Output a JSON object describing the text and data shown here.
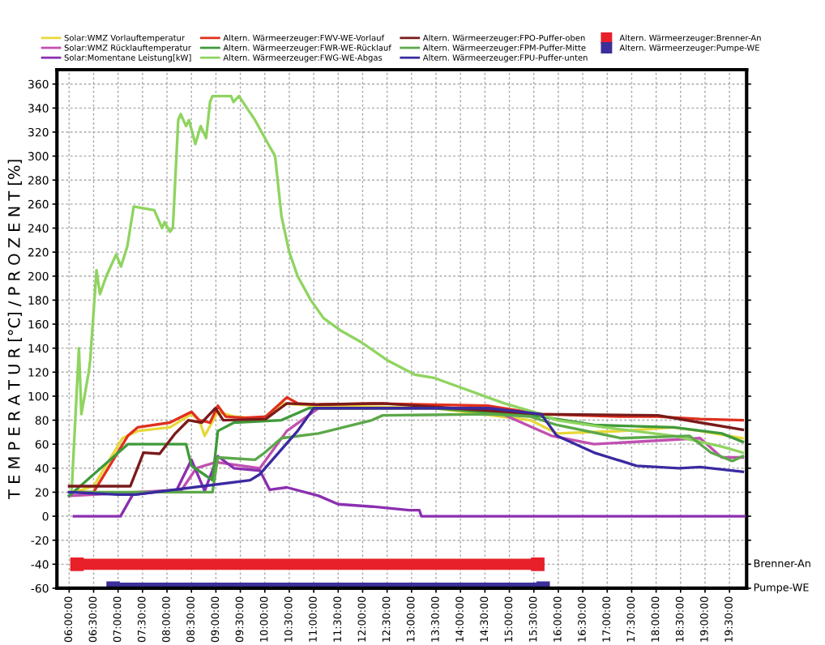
{
  "chart_data": {
    "type": "line",
    "ylabel": "T E M P E R A T U R [°C] / P R O Z E N T [%]",
    "xlim": [
      5.75,
      19.85
    ],
    "ylim": [
      -60,
      372
    ],
    "xticks": [
      {
        "value": 6,
        "label": "06:00:00"
      },
      {
        "value": 6.5,
        "label": "06:30:00"
      },
      {
        "value": 7,
        "label": "07:00:00"
      },
      {
        "value": 7.5,
        "label": "07:30:00"
      },
      {
        "value": 8,
        "label": "08:00:00"
      },
      {
        "value": 8.5,
        "label": "08:30:00"
      },
      {
        "value": 9,
        "label": "09:00:00"
      },
      {
        "value": 9.5,
        "label": "09:30:00"
      },
      {
        "value": 10,
        "label": "10:00:00"
      },
      {
        "value": 10.5,
        "label": "10:30:00"
      },
      {
        "value": 11,
        "label": "11:00:00"
      },
      {
        "value": 11.5,
        "label": "11:30:00"
      },
      {
        "value": 12,
        "label": "12:00:00"
      },
      {
        "value": 12.5,
        "label": "12:30:00"
      },
      {
        "value": 13,
        "label": "13:00:00"
      },
      {
        "value": 13.5,
        "label": "13:30:00"
      },
      {
        "value": 14,
        "label": "14:00:00"
      },
      {
        "value": 14.5,
        "label": "14:30:00"
      },
      {
        "value": 15,
        "label": "15:00:00"
      },
      {
        "value": 15.5,
        "label": "15:30:00"
      },
      {
        "value": 16,
        "label": "16:00:00"
      },
      {
        "value": 16.5,
        "label": "16:30:00"
      },
      {
        "value": 17,
        "label": "17:00:00"
      },
      {
        "value": 17.5,
        "label": "17:30:00"
      },
      {
        "value": 18,
        "label": "18:00:00"
      },
      {
        "value": 18.5,
        "label": "18:30:00"
      },
      {
        "value": 19,
        "label": "19:00:00"
      },
      {
        "value": 19.5,
        "label": "19:30:00"
      }
    ],
    "yticks": [
      -60,
      -40,
      -20,
      0,
      20,
      40,
      60,
      80,
      100,
      120,
      140,
      160,
      180,
      200,
      220,
      240,
      260,
      280,
      300,
      320,
      340,
      360
    ],
    "annotations": [
      "Brenner-An",
      "Pumpe-WE"
    ],
    "grid": true,
    "legend": "top",
    "line_style": "solid",
    "marker": "none",
    "series": [
      {
        "name": "Solar:WMZ Vorlauftemperatur",
        "color": "#e8d83a",
        "x": [
          6.1,
          6.5,
          7.09,
          7.4,
          8.06,
          8.5,
          8.66,
          8.77,
          9.04,
          9.37,
          10.0,
          10.34,
          11.1,
          13.48,
          15.43,
          15.97,
          17.28,
          18.36,
          18.9,
          19.77
        ],
        "values": [
          20,
          25,
          65,
          71,
          74,
          85,
          80,
          67,
          87,
          83,
          81,
          94,
          92,
          90,
          80,
          69,
          71,
          74,
          71,
          65
        ]
      },
      {
        "name": "Solar:WMZ Rücklauftemperatur",
        "color": "#c050b0",
        "x": [
          6.0,
          8.3,
          8.6,
          9.0,
          9.9,
          10.45,
          11.1,
          14.58,
          15.86,
          16.73,
          18.9,
          19.34,
          19.77
        ],
        "values": [
          17,
          22,
          40,
          45,
          40,
          71,
          90,
          90,
          67,
          60,
          65,
          49,
          49
        ]
      },
      {
        "name": "Solar:Momentane Leistung[kW]",
        "color": "#8a2fb0",
        "x": [
          6.1,
          7.05,
          7.3,
          8.2,
          8.5,
          8.77,
          9.04,
          9.37,
          9.9,
          10.1,
          10.45,
          11.1,
          11.5,
          12.2,
          12.95,
          13.16,
          13.2,
          19.8
        ],
        "values": [
          0,
          0,
          18,
          22,
          47,
          21,
          50,
          40,
          38,
          22,
          24,
          17,
          10,
          8,
          5,
          5,
          0,
          0
        ]
      },
      {
        "name": "Altern. Wärmeerzeuger:FWV-WE-Vorlauf",
        "color": "#e0301e",
        "x": [
          6.1,
          6.5,
          7.2,
          7.4,
          8.06,
          8.5,
          8.66,
          8.88,
          9.04,
          9.2,
          9.58,
          10.02,
          10.45,
          10.67,
          11.1,
          12.19,
          14.58,
          15.65,
          17.28,
          18.04,
          18.9,
          19.77
        ],
        "values": [
          20,
          20,
          67,
          74,
          78,
          87,
          80,
          78,
          92,
          83,
          82,
          83,
          99,
          94,
          93,
          94,
          92,
          85,
          83,
          83,
          81,
          80
        ]
      },
      {
        "name": "Altern. Wärmeerzeuger:FWR-WE-Rücklauf",
        "color": "#3f9a3a",
        "x": [
          6.0,
          7.2,
          8.39,
          8.5,
          8.93,
          9.04,
          9.37,
          10.34,
          10.9,
          13.48,
          15.65,
          16.73,
          18.36,
          19.34,
          19.77
        ],
        "values": [
          17,
          60,
          60,
          42,
          30,
          71,
          78,
          80,
          90,
          90,
          83,
          76,
          74,
          69,
          62
        ]
      },
      {
        "name": "Altern. Wärmeerzeuger:FWG-WE-Abgas",
        "color": "#8fd460",
        "x": [
          6.05,
          6.2,
          6.25,
          6.4,
          6.43,
          6.56,
          6.63,
          6.76,
          6.96,
          7.06,
          7.19,
          7.32,
          7.74,
          7.9,
          7.95,
          8.06,
          8.12,
          8.23,
          8.28,
          8.39,
          8.45,
          8.58,
          8.69,
          8.8,
          8.88,
          8.93,
          9.31,
          9.36,
          9.47,
          9.8,
          10.07,
          10.21,
          10.34,
          10.5,
          10.67,
          10.94,
          11.2,
          11.54,
          11.97,
          12.5,
          13.06,
          13.48,
          14.9,
          15.65,
          15.97,
          16.95,
          18.36,
          19.34,
          19.77
        ],
        "values": [
          20,
          140,
          85,
          120,
          130,
          205,
          185,
          200,
          218,
          208,
          225,
          258,
          255,
          240,
          245,
          237,
          240,
          330,
          335,
          325,
          330,
          310,
          325,
          315,
          345,
          350,
          350,
          345,
          350,
          330,
          310,
          300,
          250,
          220,
          200,
          180,
          165,
          155,
          145,
          130,
          118,
          115,
          94,
          85,
          80,
          74,
          67,
          58,
          53
        ]
      },
      {
        "name": "Altern. Wärmeerzeuger:FPO-Puffer-oben",
        "color": "#7a1a1a",
        "x": [
          6.0,
          7.25,
          7.52,
          7.85,
          8.17,
          8.44,
          8.71,
          8.99,
          9.15,
          10.02,
          10.45,
          11.1,
          12.41,
          15.65,
          18.04,
          18.9,
          19.77
        ],
        "values": [
          25,
          25,
          53,
          52,
          69,
          80,
          78,
          90,
          80,
          81,
          94,
          93,
          94,
          85,
          84,
          78,
          72
        ]
      },
      {
        "name": "Altern. Wärmeerzeuger:FPM-Puffer-Mitte",
        "color": "#5ca84a",
        "x": [
          6.0,
          8.93,
          9.04,
          9.8,
          10.0,
          10.34,
          11.1,
          12.19,
          12.41,
          14.58,
          15.43,
          15.97,
          17.28,
          18.68,
          19.12,
          19.56,
          19.77
        ],
        "values": [
          20,
          20,
          49,
          47,
          53,
          65,
          69,
          80,
          84,
          85,
          83,
          76,
          65,
          67,
          53,
          46,
          50
        ]
      },
      {
        "name": "Altern. Wärmeerzeuger:FPU-Puffer-unten",
        "color": "#3a2aa0",
        "x": [
          6.0,
          7.0,
          7.36,
          9.7,
          9.9,
          10.67,
          11.0,
          14.58,
          15.65,
          15.97,
          16.73,
          17.6,
          18.47,
          18.9,
          19.77
        ],
        "values": [
          20,
          18,
          18,
          30,
          35,
          71,
          90,
          90,
          85,
          67,
          53,
          42,
          40,
          41,
          37
        ]
      },
      {
        "name": "Altern. Wärmeerzeuger:Brenner-An",
        "color": "#e8202a",
        "marker": "square",
        "x": [
          6.16,
          15.58
        ],
        "values": [
          -40,
          -40
        ]
      },
      {
        "name": "Altern. Wärmeerzeuger:Pumpe-WE",
        "color": "#3c2f9a",
        "marker": "square",
        "x": [
          6.9,
          15.69
        ],
        "values": [
          -60,
          -60
        ]
      }
    ]
  }
}
